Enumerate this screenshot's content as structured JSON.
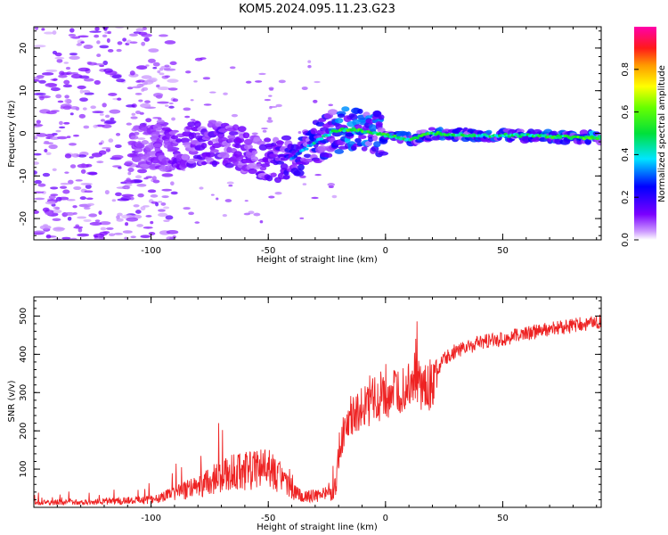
{
  "title": "KOM5.2024.095.11.23.G23",
  "chart_data": [
    {
      "type": "heatmap",
      "xlabel": "Height of straight line (km)",
      "ylabel": "Frequency (Hz)",
      "xlim": [
        -150,
        92
      ],
      "ylim": [
        -25,
        25
      ],
      "x_ticks": [
        -100,
        -50,
        0,
        50
      ],
      "y_ticks": [
        -20,
        -10,
        0,
        10,
        20
      ],
      "colorbar": {
        "label": "Normalized spectral amplitude",
        "range": [
          0,
          1
        ],
        "ticks": [
          "0.0",
          "0.2",
          "0.4",
          "0.6",
          "0.8"
        ],
        "colormap": "rainbow (white → purple → blue → cyan → green → yellow → orange → red → magenta)"
      },
      "trace": {
        "description_points_x": [
          -105,
          -90,
          -75,
          -60,
          -50,
          -40,
          -30,
          -22,
          -15,
          -5,
          0,
          10,
          20,
          40,
          60,
          80,
          92
        ],
        "center_frequency_hz": [
          -3,
          -3.5,
          -2,
          -4,
          -6,
          -6,
          -2,
          0.5,
          1,
          0,
          -0.5,
          -1.5,
          0,
          -0.5,
          -0.5,
          -1,
          -1
        ],
        "normalized_amplitude": [
          0.1,
          0.15,
          0.2,
          0.15,
          0.2,
          0.3,
          0.4,
          0.45,
          0.55,
          0.5,
          0.5,
          0.45,
          0.5,
          0.45,
          0.45,
          0.5,
          0.55
        ]
      }
    },
    {
      "type": "line",
      "xlabel": "Height of straight line (km)",
      "ylabel": "SNR (v/v)",
      "xlim": [
        -150,
        92
      ],
      "ylim": [
        0,
        550
      ],
      "x_ticks": [
        -100,
        -50,
        0,
        50
      ],
      "y_ticks": [
        100,
        200,
        300,
        400,
        500
      ],
      "color": "#ee2222",
      "series": [
        {
          "x": [
            -150,
            -120,
            -100,
            -90,
            -80,
            -75,
            -70,
            -65,
            -60,
            -55,
            -50,
            -45,
            -40,
            -35,
            -30,
            -25,
            -22,
            -20,
            -18,
            -15,
            -10,
            -5,
            0,
            5,
            10,
            13,
            15,
            18,
            20,
            25,
            30,
            40,
            50,
            60,
            70,
            80,
            92
          ],
          "y": [
            12,
            15,
            20,
            35,
            55,
            70,
            80,
            90,
            95,
            105,
            100,
            80,
            40,
            30,
            30,
            35,
            40,
            110,
            200,
            240,
            260,
            280,
            300,
            290,
            320,
            370,
            300,
            310,
            340,
            385,
            410,
            430,
            440,
            455,
            465,
            475,
            485
          ]
        }
      ]
    }
  ]
}
